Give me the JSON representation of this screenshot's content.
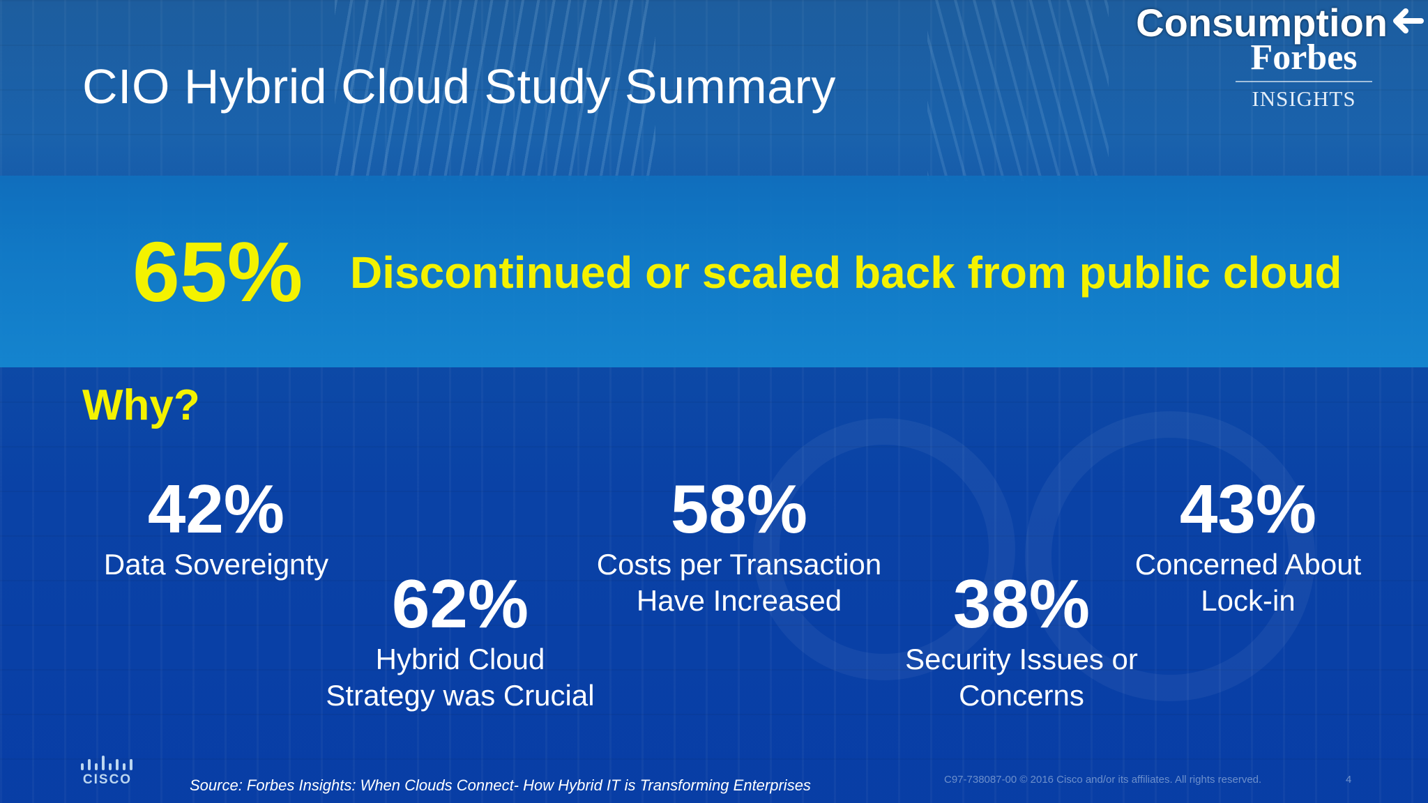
{
  "slide": {
    "title": "CIO Hybrid Cloud Study Summary",
    "corner_tag": "Consumption",
    "corner_icon": "arrow-left-icon",
    "logo": {
      "name": "Forbes",
      "sub": "INSIGHTS"
    }
  },
  "headline": {
    "percent": "65%",
    "text": "Discontinued or scaled back from public cloud",
    "color": "#f4f200"
  },
  "why_label": "Why?",
  "stats": [
    {
      "percent": "42%",
      "label": "Data Sovereignty"
    },
    {
      "percent": "62%",
      "label": "Hybrid Cloud\nStrategy was Crucial"
    },
    {
      "percent": "58%",
      "label": "Costs per Transaction\nHave Increased"
    },
    {
      "percent": "38%",
      "label": "Security Issues or\nConcerns"
    },
    {
      "percent": "43%",
      "label": "Concerned About\nLock-in"
    }
  ],
  "footer": {
    "brand": "CISCO",
    "source": "Source: Forbes Insights: When Clouds Connect- How Hybrid IT is Transforming Enterprises",
    "copyright": "C97-738087-00 © 2016  Cisco and/or its affiliates. All rights reserved.",
    "page_number": "4"
  }
}
